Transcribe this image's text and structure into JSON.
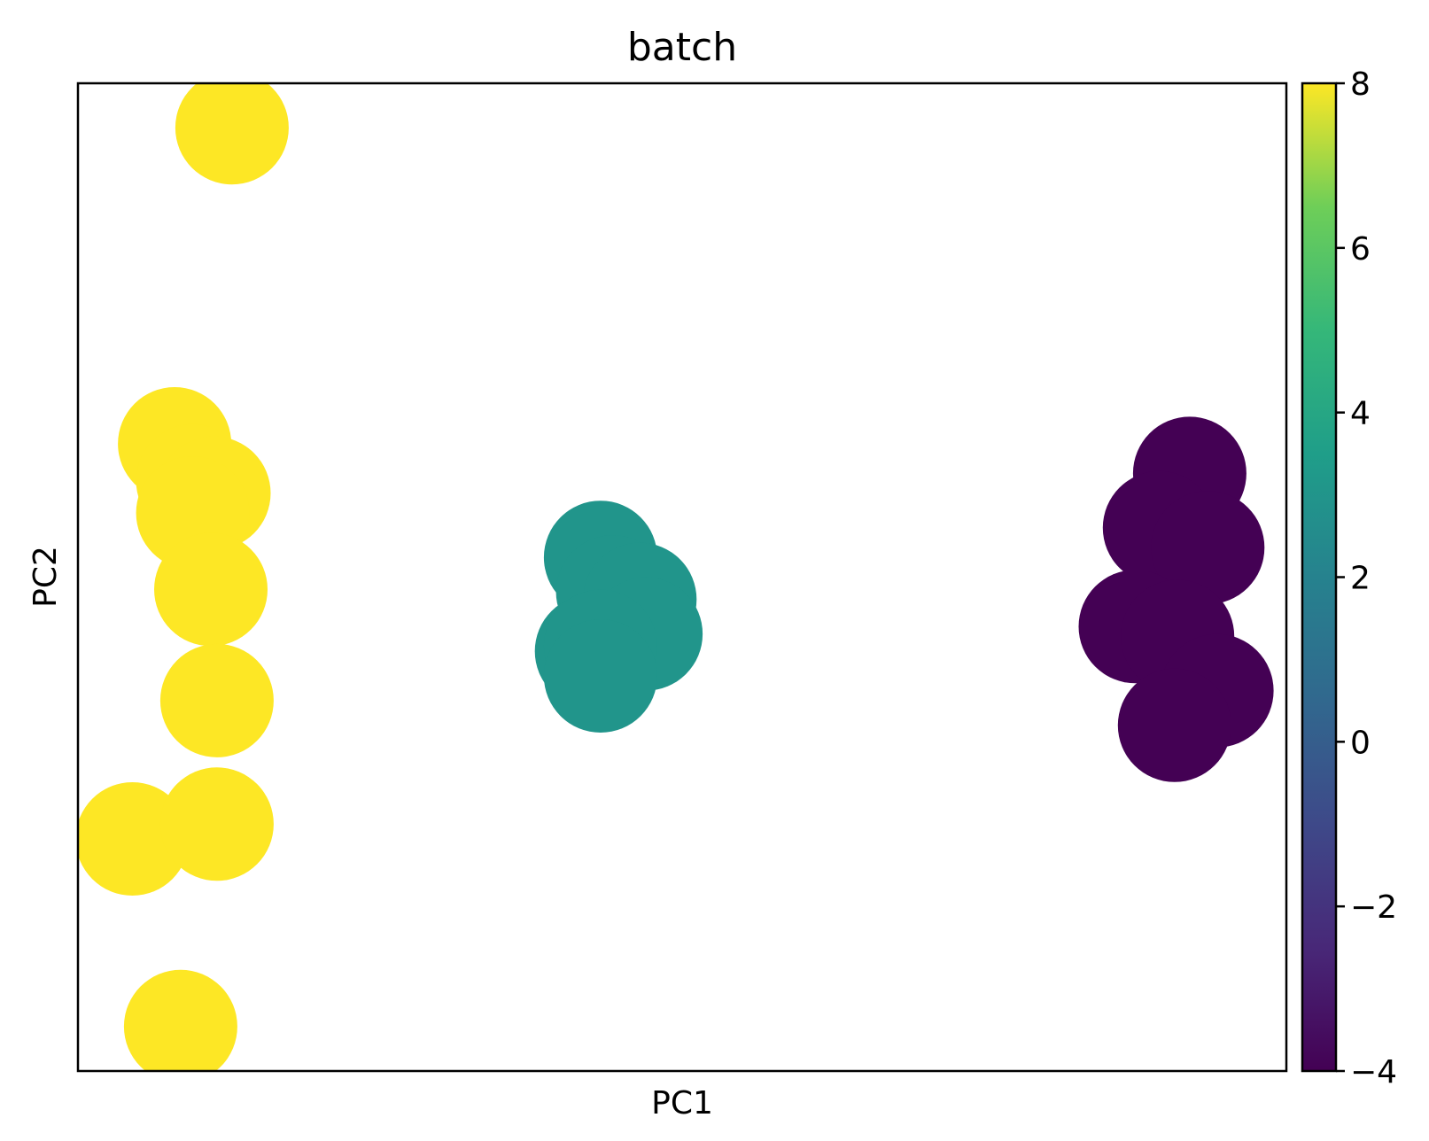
{
  "chart_data": {
    "type": "scatter",
    "title": "batch",
    "xlabel": "PC1",
    "ylabel": "PC2",
    "xlim": [
      -10,
      10
    ],
    "ylim": [
      -10,
      10
    ],
    "x_ticks_shown": false,
    "y_ticks_shown": false,
    "grid": false,
    "colorbar": {
      "label": "",
      "range": [
        -4,
        8
      ],
      "ticks": [
        8,
        6,
        4,
        2,
        0,
        -2,
        -4
      ],
      "tick_labels": [
        "8",
        "6",
        "4",
        "2",
        "0",
        "−2",
        "−4"
      ],
      "colormap": "viridis",
      "placement": "right"
    },
    "points": [
      {
        "x": -7.45,
        "y": 9.1,
        "c": 8
      },
      {
        "x": -8.4,
        "y": 2.7,
        "c": 8
      },
      {
        "x": -8.1,
        "y": 1.95,
        "c": 8
      },
      {
        "x": -7.75,
        "y": 1.7,
        "c": 8
      },
      {
        "x": -8.1,
        "y": 1.3,
        "c": 8
      },
      {
        "x": -7.8,
        "y": -0.25,
        "c": 8
      },
      {
        "x": -7.7,
        "y": -2.5,
        "c": 8
      },
      {
        "x": -9.1,
        "y": -5.3,
        "c": 8
      },
      {
        "x": -7.7,
        "y": -5.0,
        "c": 8
      },
      {
        "x": -8.3,
        "y": -9.1,
        "c": 8
      },
      {
        "x": -1.35,
        "y": 0.4,
        "c": 3
      },
      {
        "x": -1.15,
        "y": -0.3,
        "c": 3
      },
      {
        "x": -0.7,
        "y": -0.45,
        "c": 3
      },
      {
        "x": -0.6,
        "y": -1.15,
        "c": 3
      },
      {
        "x": -1.5,
        "y": -1.5,
        "c": 3
      },
      {
        "x": -1.35,
        "y": -1.4,
        "c": 3
      },
      {
        "x": -1.35,
        "y": -2.0,
        "c": 3
      },
      {
        "x": 8.4,
        "y": 2.1,
        "c": -4
      },
      {
        "x": 7.9,
        "y": 1.0,
        "c": -4
      },
      {
        "x": 8.7,
        "y": 0.6,
        "c": -4
      },
      {
        "x": 7.5,
        "y": -1.0,
        "c": -4
      },
      {
        "x": 8.2,
        "y": -1.2,
        "c": -4
      },
      {
        "x": 8.85,
        "y": -2.3,
        "c": -4
      },
      {
        "x": 8.15,
        "y": -3.0,
        "c": -4
      }
    ]
  }
}
